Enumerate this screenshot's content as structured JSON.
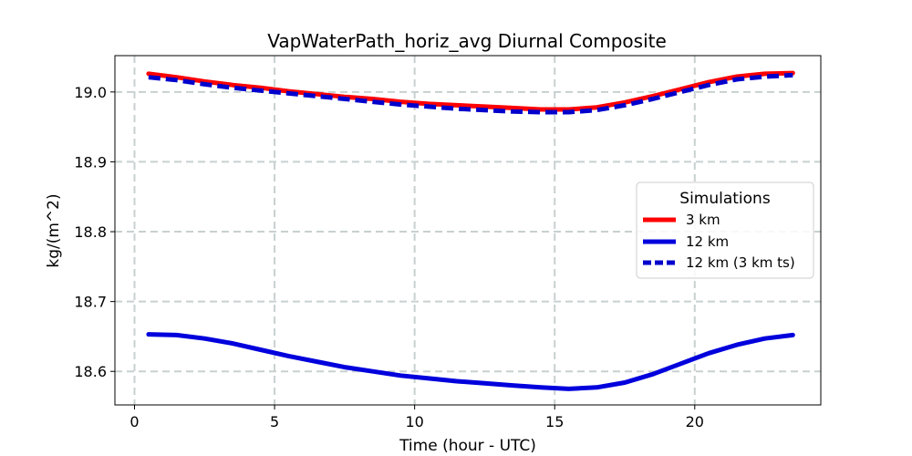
{
  "chart_data": {
    "type": "line",
    "title": "VapWaterPath_horiz_avg Diurnal Composite",
    "xlabel": "Time (hour - UTC)",
    "ylabel": "kg/(m^2)",
    "xlim": [
      -0.7,
      24.5
    ],
    "ylim": [
      18.552,
      19.052
    ],
    "xticks": [
      0,
      5,
      10,
      15,
      20
    ],
    "xtick_labels": [
      "0",
      "5",
      "10",
      "15",
      "20"
    ],
    "yticks": [
      18.6,
      18.7,
      18.8,
      18.9,
      19.0
    ],
    "ytick_labels": [
      "18.6",
      "18.7",
      "18.8",
      "18.9",
      "19.0"
    ],
    "grid": true,
    "legend": {
      "title": "Simulations",
      "placement": "center-right"
    },
    "x": [
      0.5,
      1.5,
      2.5,
      3.5,
      4.5,
      5.5,
      6.5,
      7.5,
      8.5,
      9.5,
      10.5,
      11.5,
      12.5,
      13.5,
      14.5,
      15.5,
      16.5,
      17.5,
      18.5,
      19.5,
      20.5,
      21.5,
      22.5,
      23.5
    ],
    "series": [
      {
        "name": "3 km",
        "color": "#ff0000",
        "style": "solid",
        "values": [
          19.026,
          19.021,
          19.015,
          19.01,
          19.006,
          19.001,
          18.997,
          18.993,
          18.99,
          18.986,
          18.983,
          18.981,
          18.979,
          18.977,
          18.975,
          18.975,
          18.978,
          18.985,
          18.994,
          19.004,
          19.014,
          19.022,
          19.026,
          19.027
        ]
      },
      {
        "name": "12 km",
        "color": "#0000dd",
        "style": "solid",
        "values": [
          18.653,
          18.652,
          18.647,
          18.64,
          18.631,
          18.622,
          18.614,
          18.606,
          18.6,
          18.594,
          18.59,
          18.586,
          18.583,
          18.58,
          18.577,
          18.575,
          18.577,
          18.584,
          18.596,
          18.611,
          18.626,
          18.638,
          18.647,
          18.652
        ]
      },
      {
        "name": "12 km (3 km ts)",
        "color": "#0000cc",
        "style": "dashed",
        "values": [
          19.021,
          19.017,
          19.011,
          19.006,
          19.002,
          18.998,
          18.994,
          18.99,
          18.986,
          18.982,
          18.979,
          18.976,
          18.974,
          18.972,
          18.971,
          18.971,
          18.974,
          18.981,
          18.99,
          19.0,
          19.01,
          19.018,
          19.022,
          19.024
        ]
      }
    ]
  }
}
